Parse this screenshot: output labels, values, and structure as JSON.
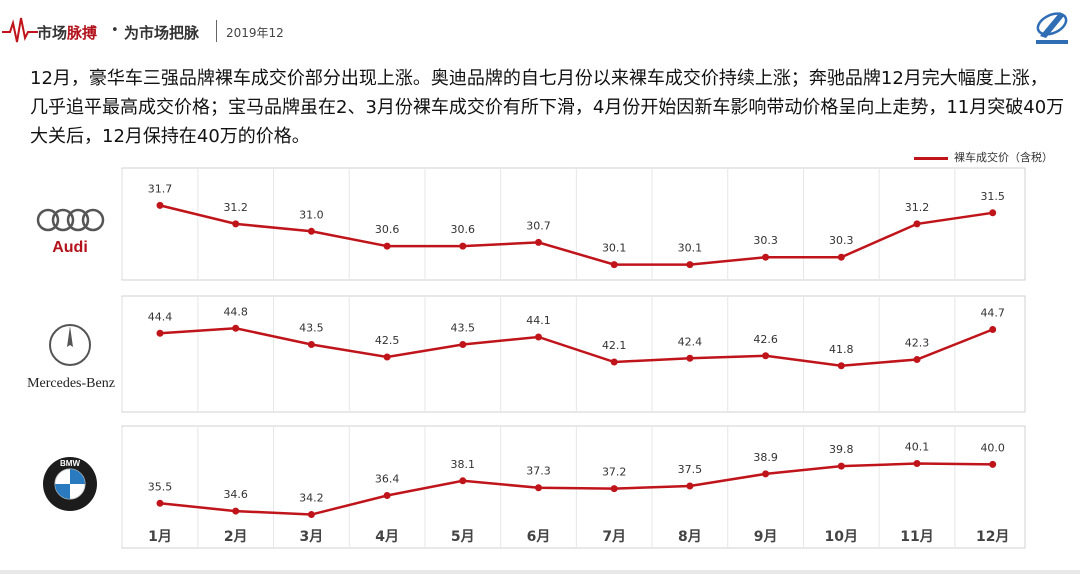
{
  "header": {
    "brand_prefix": "市场",
    "brand_highlight": "脉搏",
    "dot": "•",
    "tagline": "为市场把脉",
    "date": "2019年12"
  },
  "description": "12月，豪华车三强品牌裸车成交价部分出现上涨。奥迪品牌的自七月份以来裸车成交价持续上涨；奔驰品牌12月完大幅度上涨，几乎追平最高成交价格；宝马品牌虽在2、3月份裸车成交价有所下滑，4月份开始因新车影响带动价格呈向上走势，11月突破40万大关后，12月保持在40万的价格。",
  "legend": {
    "label": "裸车成交价（含税）",
    "color": "#c0141b"
  },
  "brands": {
    "audi": {
      "name": "Audi"
    },
    "mercedes": {
      "name": "Mercedes-Benz"
    },
    "bmw": {
      "letters": "BMW"
    }
  },
  "chart_data": [
    {
      "type": "line",
      "categories": [
        "1月",
        "2月",
        "3月",
        "4月",
        "5月",
        "6月",
        "7月",
        "8月",
        "9月",
        "10月",
        "11月",
        "12月"
      ],
      "series": [
        {
          "name": "裸车成交价（含税）",
          "values": [
            31.7,
            31.2,
            31.0,
            30.6,
            30.6,
            30.7,
            30.1,
            30.1,
            30.3,
            30.3,
            31.2,
            31.5
          ]
        }
      ],
      "data_labels": [
        "31.7",
        "31.2",
        "31.0",
        "30.6",
        "30.6",
        "30.7",
        "30.1",
        "30.1",
        "30.3",
        "30.3",
        "31.2",
        "31.5"
      ],
      "ylim": [
        29.9,
        31.9
      ],
      "color": "#c0141b"
    },
    {
      "type": "line",
      "categories": [
        "1月",
        "2月",
        "3月",
        "4月",
        "5月",
        "6月",
        "7月",
        "8月",
        "9月",
        "10月",
        "11月",
        "12月"
      ],
      "series": [
        {
          "name": "裸车成交价（含税）",
          "values": [
            44.4,
            44.8,
            43.5,
            42.5,
            43.5,
            44.1,
            42.1,
            42.4,
            42.6,
            41.8,
            42.3,
            44.7
          ]
        }
      ],
      "data_labels": [
        "44.4",
        "44.8",
        "43.5",
        "42.5",
        "43.5",
        "44.1",
        "42.1",
        "42.4",
        "42.6",
        "41.8",
        "42.3",
        "44.7"
      ],
      "ylim": [
        41.3,
        45.3
      ],
      "color": "#c0141b"
    },
    {
      "type": "line",
      "categories": [
        "1月",
        "2月",
        "3月",
        "4月",
        "5月",
        "6月",
        "7月",
        "8月",
        "9月",
        "10月",
        "11月",
        "12月"
      ],
      "series": [
        {
          "name": "裸车成交价（含税）",
          "values": [
            35.5,
            34.6,
            34.2,
            36.4,
            38.1,
            37.3,
            37.2,
            37.5,
            38.9,
            39.8,
            40.1,
            40.0
          ]
        }
      ],
      "data_labels": [
        "35.5",
        "34.6",
        "34.2",
        "36.4",
        "38.1",
        "37.3",
        "37.2",
        "37.5",
        "38.9",
        "39.8",
        "40.1",
        "40.0"
      ],
      "ylim": [
        33.8,
        41.2
      ],
      "color": "#c0141b"
    }
  ]
}
